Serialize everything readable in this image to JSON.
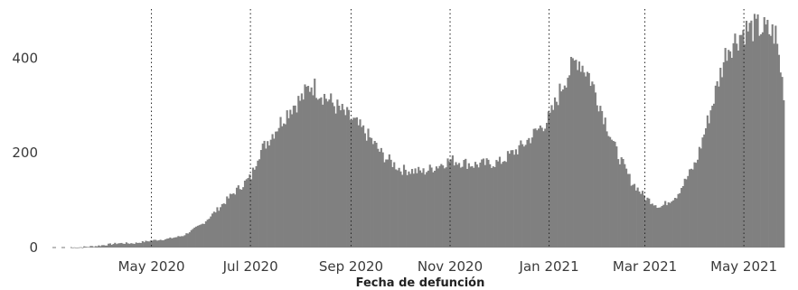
{
  "chart_data": {
    "type": "bar",
    "xlabel": "Fecha de defunción",
    "ylabel": "",
    "title": "",
    "bar_color": "#808080",
    "grid": false,
    "ylim": [
      0,
      500
    ],
    "xlim": [
      "2020-03-01",
      "2021-05-31"
    ],
    "y_ticks": [
      {
        "value": 0,
        "label": "0"
      },
      {
        "value": 200,
        "label": "200"
      },
      {
        "value": 400,
        "label": "400"
      }
    ],
    "x_ticks": [
      {
        "value": "2020-05-01",
        "label": "May 2020"
      },
      {
        "value": "2020-07-01",
        "label": "Jul 2020"
      },
      {
        "value": "2020-09-01",
        "label": "Sep 2020"
      },
      {
        "value": "2020-11-01",
        "label": "Nov 2020"
      },
      {
        "value": "2021-01-01",
        "label": "Jan 2021"
      },
      {
        "value": "2021-03-01",
        "label": "Mar 2021"
      },
      {
        "value": "2021-05-01",
        "label": "May 2021"
      }
    ],
    "series_points": [
      [
        "2020-03-13",
        0
      ],
      [
        "2020-03-20",
        1
      ],
      [
        "2020-03-27",
        3
      ],
      [
        "2020-04-03",
        6
      ],
      [
        "2020-04-10",
        9
      ],
      [
        "2020-04-20",
        9
      ],
      [
        "2020-05-01",
        15
      ],
      [
        "2020-05-10",
        18
      ],
      [
        "2020-05-20",
        25
      ],
      [
        "2020-06-01",
        50
      ],
      [
        "2020-06-10",
        80
      ],
      [
        "2020-06-20",
        115
      ],
      [
        "2020-07-01",
        150
      ],
      [
        "2020-07-05",
        195
      ],
      [
        "2020-07-15",
        245
      ],
      [
        "2020-07-25",
        295
      ],
      [
        "2020-08-01",
        315
      ],
      [
        "2020-08-07",
        345
      ],
      [
        "2020-08-15",
        320
      ],
      [
        "2020-08-25",
        290
      ],
      [
        "2020-09-01",
        270
      ],
      [
        "2020-09-10",
        240
      ],
      [
        "2020-09-20",
        195
      ],
      [
        "2020-10-01",
        165
      ],
      [
        "2020-10-15",
        160
      ],
      [
        "2020-11-01",
        185
      ],
      [
        "2020-11-15",
        175
      ],
      [
        "2020-12-01",
        180
      ],
      [
        "2020-12-15",
        215
      ],
      [
        "2021-01-01",
        275
      ],
      [
        "2021-01-10",
        355
      ],
      [
        "2021-01-18",
        400
      ],
      [
        "2021-01-25",
        365
      ],
      [
        "2021-02-01",
        300
      ],
      [
        "2021-02-10",
        210
      ],
      [
        "2021-02-20",
        140
      ],
      [
        "2021-03-01",
        105
      ],
      [
        "2021-03-10",
        85
      ],
      [
        "2021-03-20",
        110
      ],
      [
        "2021-04-01",
        180
      ],
      [
        "2021-04-10",
        290
      ],
      [
        "2021-04-20",
        420
      ],
      [
        "2021-05-01",
        460
      ],
      [
        "2021-05-10",
        465
      ],
      [
        "2021-05-20",
        450
      ],
      [
        "2021-05-25",
        330
      ]
    ]
  }
}
